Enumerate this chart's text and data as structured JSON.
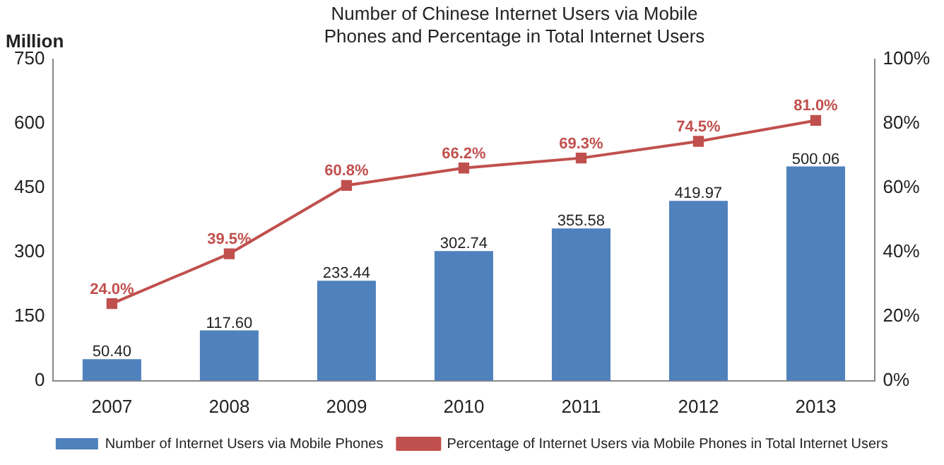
{
  "chart_data": {
    "type": "bar",
    "title": "Number of Chinese Internet Users via Mobile Phones and Percentage in Total Internet Users",
    "ylabel": "Million",
    "categories": [
      "2007",
      "2008",
      "2009",
      "2010",
      "2011",
      "2012",
      "2013"
    ],
    "series": [
      {
        "name": "Number of Internet Users via Mobile Phones",
        "color": "#4f81bd",
        "values": [
          50.4,
          117.6,
          233.44,
          302.74,
          355.58,
          419.97,
          500.06
        ],
        "value_labels": [
          "50.40",
          "117.60",
          "233.44",
          "302.74",
          "355.58",
          "419.97",
          "500.06"
        ]
      },
      {
        "name": "Percentage of Internet Users via Mobile Phones in Total Internet Users",
        "type": "line",
        "axis": "y2",
        "color": "#c0504d",
        "marker": "square",
        "values": [
          24.0,
          39.5,
          60.8,
          66.2,
          69.3,
          74.5,
          81.0
        ],
        "value_labels": [
          "24.0%",
          "39.5%",
          "60.8%",
          "66.2%",
          "69.3%",
          "74.5%",
          "81.0%"
        ]
      }
    ],
    "ylim": [
      0,
      750
    ],
    "yticks": [
      0,
      150,
      300,
      450,
      600,
      750
    ],
    "y2lim": [
      0,
      100
    ],
    "y2ticks": [
      {
        "value": 0,
        "label": "0%"
      },
      {
        "value": 20,
        "label": "20%"
      },
      {
        "value": 40,
        "label": "40%"
      },
      {
        "value": 60,
        "label": "60%"
      },
      {
        "value": 80,
        "label": "80%"
      },
      {
        "value": 100,
        "label": "100%"
      }
    ],
    "grid": false,
    "legend": "bottom"
  }
}
